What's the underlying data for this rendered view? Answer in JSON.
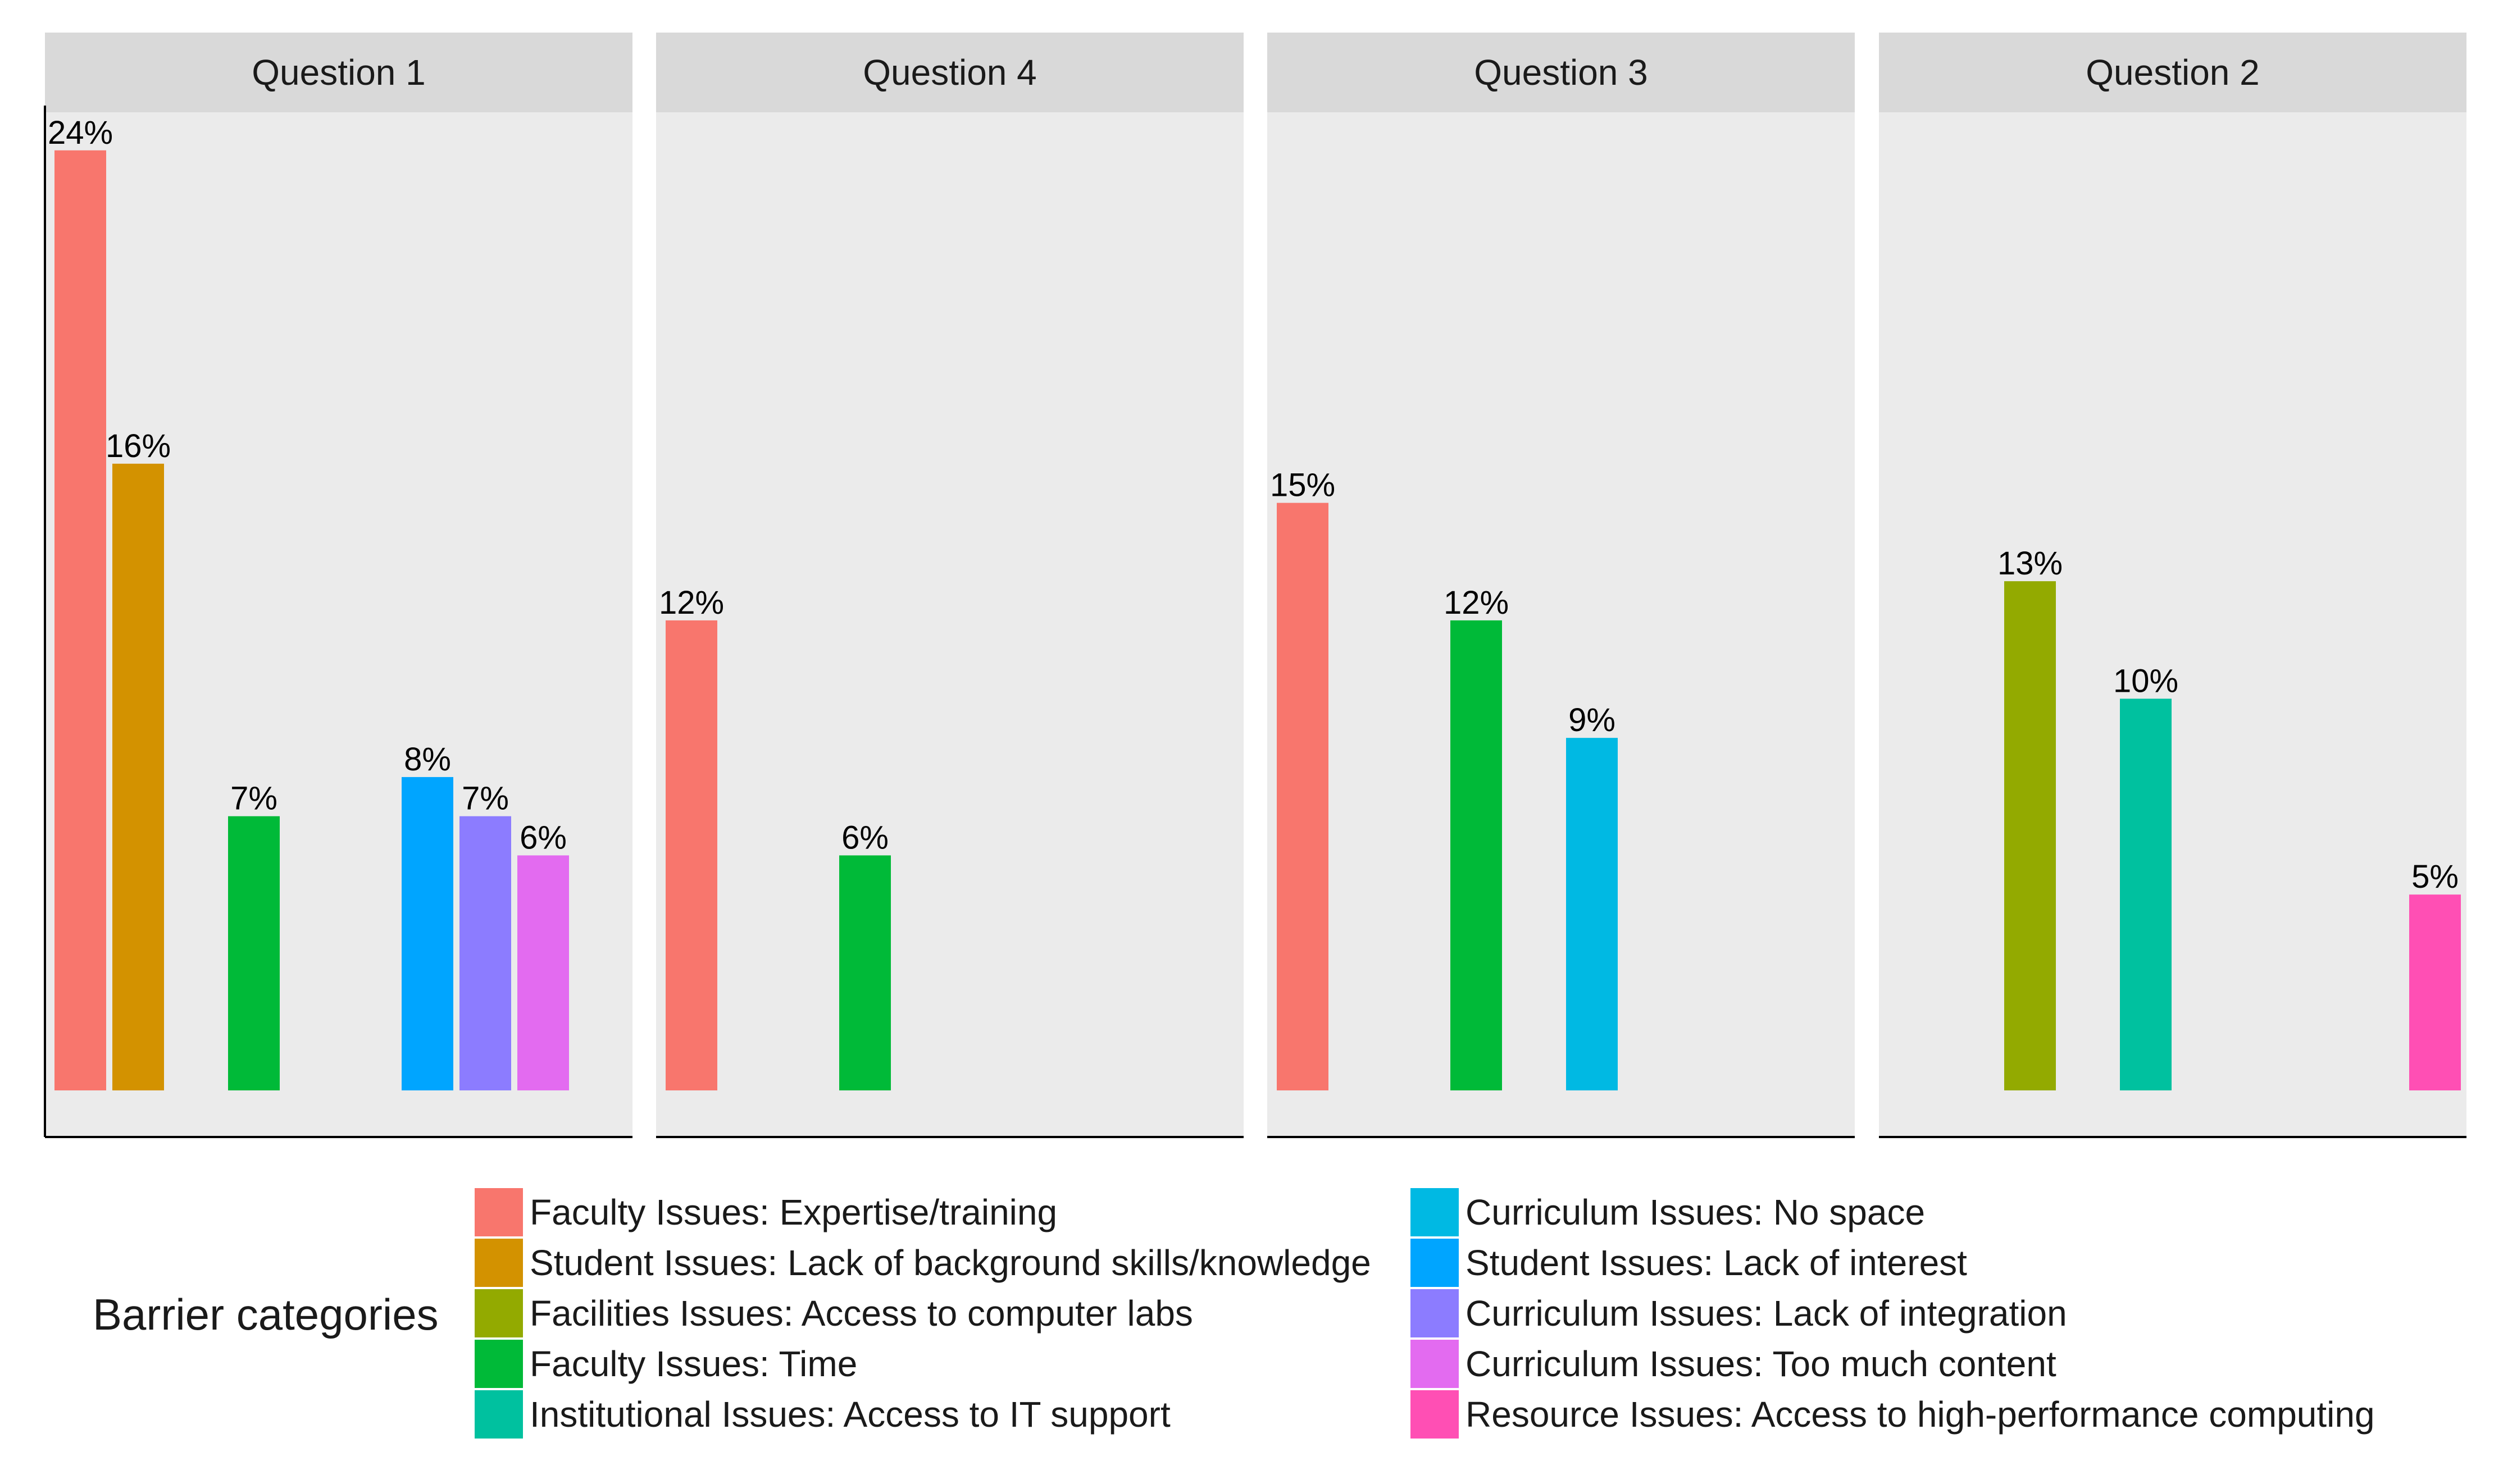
{
  "chart_data": {
    "type": "bar",
    "facets": [
      {
        "title": "Question 1",
        "bars": [
          {
            "category": "Faculty Issues: Expertise/training",
            "value": 24,
            "label": "24%"
          },
          {
            "category": "Student Issues: Lack of background skills/knowledge",
            "value": 16,
            "label": "16%"
          },
          {
            "category": "Faculty Issues: Time",
            "value": 7,
            "label": "7%"
          },
          {
            "category": "Student Issues: Lack of interest",
            "value": 8,
            "label": "8%"
          },
          {
            "category": "Curriculum Issues: Lack of integration",
            "value": 7,
            "label": "7%"
          },
          {
            "category": "Curriculum Issues: Too much content",
            "value": 6,
            "label": "6%"
          }
        ]
      },
      {
        "title": "Question 4",
        "bars": [
          {
            "category": "Faculty Issues: Expertise/training",
            "value": 12,
            "label": "12%"
          },
          {
            "category": "Faculty Issues: Time",
            "value": 6,
            "label": "6%"
          }
        ]
      },
      {
        "title": "Question 3",
        "bars": [
          {
            "category": "Faculty Issues: Expertise/training",
            "value": 15,
            "label": "15%"
          },
          {
            "category": "Faculty Issues: Time",
            "value": 12,
            "label": "12%"
          },
          {
            "category": "Curriculum Issues: No space",
            "value": 9,
            "label": "9%"
          }
        ]
      },
      {
        "title": "Question 2",
        "bars": [
          {
            "category": "Facilities Issues: Access to computer labs",
            "value": 13,
            "label": "13%"
          },
          {
            "category": "Institutional Issues: Access to IT support",
            "value": 10,
            "label": "10%"
          },
          {
            "category": "Resource Issues: Access to high-performance computing",
            "value": 5,
            "label": "5%"
          }
        ]
      }
    ],
    "legend": {
      "title": "Barrier categories",
      "position": "bottom",
      "entries": [
        {
          "name": "Faculty Issues: Expertise/training",
          "color": "#F8766D"
        },
        {
          "name": "Student Issues: Lack of background skills/knowledge",
          "color": "#D39200"
        },
        {
          "name": "Facilities Issues: Access to computer labs",
          "color": "#93AA00"
        },
        {
          "name": "Faculty Issues: Time",
          "color": "#00BA38"
        },
        {
          "name": "Institutional Issues: Access to IT support",
          "color": "#00C19F"
        },
        {
          "name": "Curriculum Issues: No space",
          "color": "#00B9E3"
        },
        {
          "name": "Student Issues: Lack of interest",
          "color": "#00A5FF"
        },
        {
          "name": "Curriculum Issues: Lack of integration",
          "color": "#8C7CFF"
        },
        {
          "name": "Curriculum Issues: Too much content",
          "color": "#E36BF0"
        },
        {
          "name": "Resource Issues: Access to high-performance computing",
          "color": "#FF4FB4"
        }
      ]
    },
    "ylim": [
      0,
      25
    ],
    "panel_background": "#EBEBEB",
    "grid": false
  }
}
